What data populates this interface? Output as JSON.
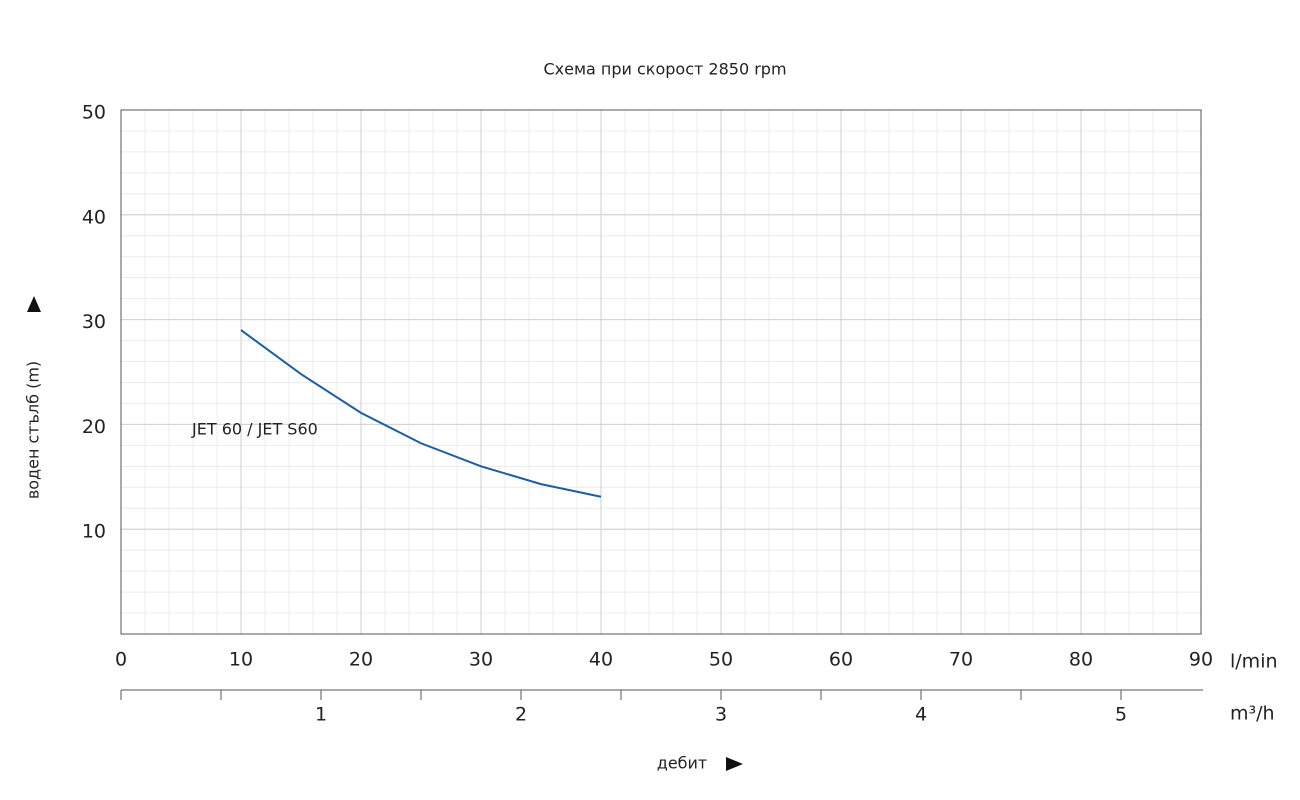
{
  "chart_data": {
    "type": "line",
    "title": "Схема при скорост 2850 rpm",
    "y_label": "воден стълб (m)",
    "x_unit": "l/min",
    "x2_unit": "m³/h",
    "x_label": "дебит",
    "x": [
      10,
      15,
      20,
      25,
      30,
      35,
      40
    ],
    "series": [
      {
        "name": "JET 60 / JET S60",
        "color": "#1a5ea8",
        "values": [
          29.0,
          24.8,
          21.1,
          18.2,
          16.0,
          14.3,
          13.1
        ]
      }
    ],
    "xlim": [
      0,
      90
    ],
    "xticks": [
      0,
      10,
      20,
      30,
      40,
      50,
      60,
      70,
      80,
      90
    ],
    "ylim": [
      0,
      50
    ],
    "yticks": [
      10,
      20,
      30,
      40,
      50
    ],
    "x2lim": [
      0,
      5.41
    ],
    "x2ticks": [
      1,
      2,
      3,
      4,
      5
    ],
    "x2minor": [
      0,
      0.5,
      1.5,
      2.5,
      3.5,
      4.5
    ],
    "grid": true
  }
}
